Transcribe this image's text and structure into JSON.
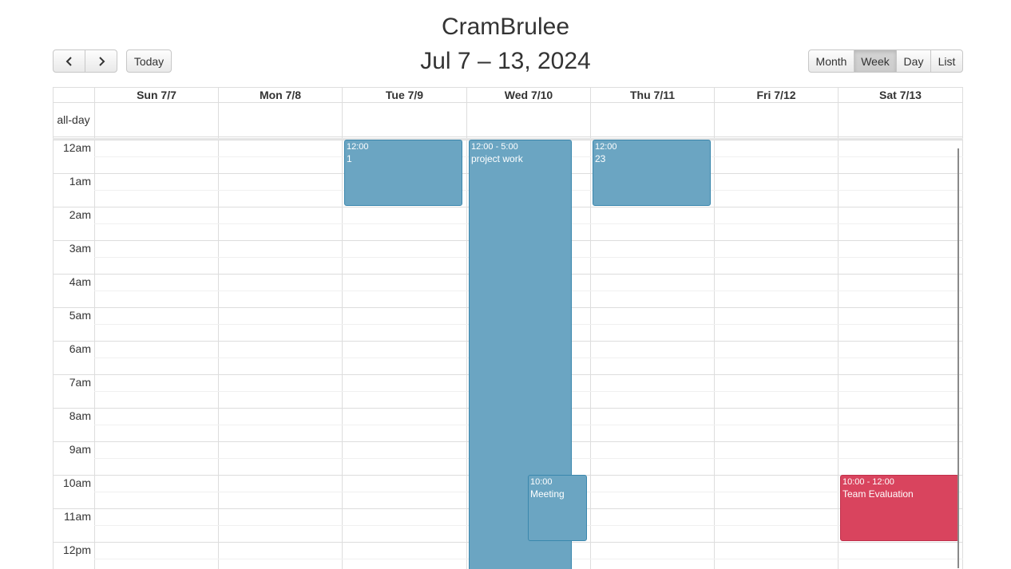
{
  "app": {
    "title": "CramBrulee"
  },
  "toolbar": {
    "prev_icon": "chevron-left-icon",
    "next_icon": "chevron-right-icon",
    "today_label": "Today",
    "range_title": "Jul 7 – 13, 2024",
    "views": [
      {
        "label": "Month",
        "active": false
      },
      {
        "label": "Week",
        "active": true
      },
      {
        "label": "Day",
        "active": false
      },
      {
        "label": "List",
        "active": false
      }
    ]
  },
  "calendar": {
    "allday_label": "all-day",
    "days": [
      "Sun 7/7",
      "Mon 7/8",
      "Tue 7/9",
      "Wed 7/10",
      "Thu 7/11",
      "Fri 7/12",
      "Sat 7/13"
    ],
    "time_labels": [
      "12am",
      "1am",
      "2am",
      "3am",
      "4am",
      "5am",
      "6am",
      "7am",
      "8am",
      "9am",
      "10am",
      "11am",
      "12pm"
    ],
    "events": [
      {
        "time": "12:00",
        "title": "1",
        "day": "Tue 7/9",
        "start": "12:00am",
        "end": "2:00am",
        "color": "#6ba5c2"
      },
      {
        "time": "12:00 - 5:00",
        "title": "project work",
        "day": "Wed 7/10",
        "start": "12:00am",
        "end": "5:00pm",
        "color": "#6ba5c2"
      },
      {
        "time": "12:00",
        "title": "23",
        "day": "Thu 7/11",
        "start": "12:00am",
        "end": "2:00am",
        "color": "#6ba5c2"
      },
      {
        "time": "10:00",
        "title": "Meeting",
        "day": "Wed 7/10",
        "start": "10:00am",
        "end": "12:00pm",
        "color": "#6ba5c2"
      },
      {
        "time": "10:00 - 12:00",
        "title": "Team Evaluation",
        "day": "Sat 7/13",
        "start": "10:00am",
        "end": "12:00pm",
        "color": "#d9445e"
      }
    ]
  }
}
